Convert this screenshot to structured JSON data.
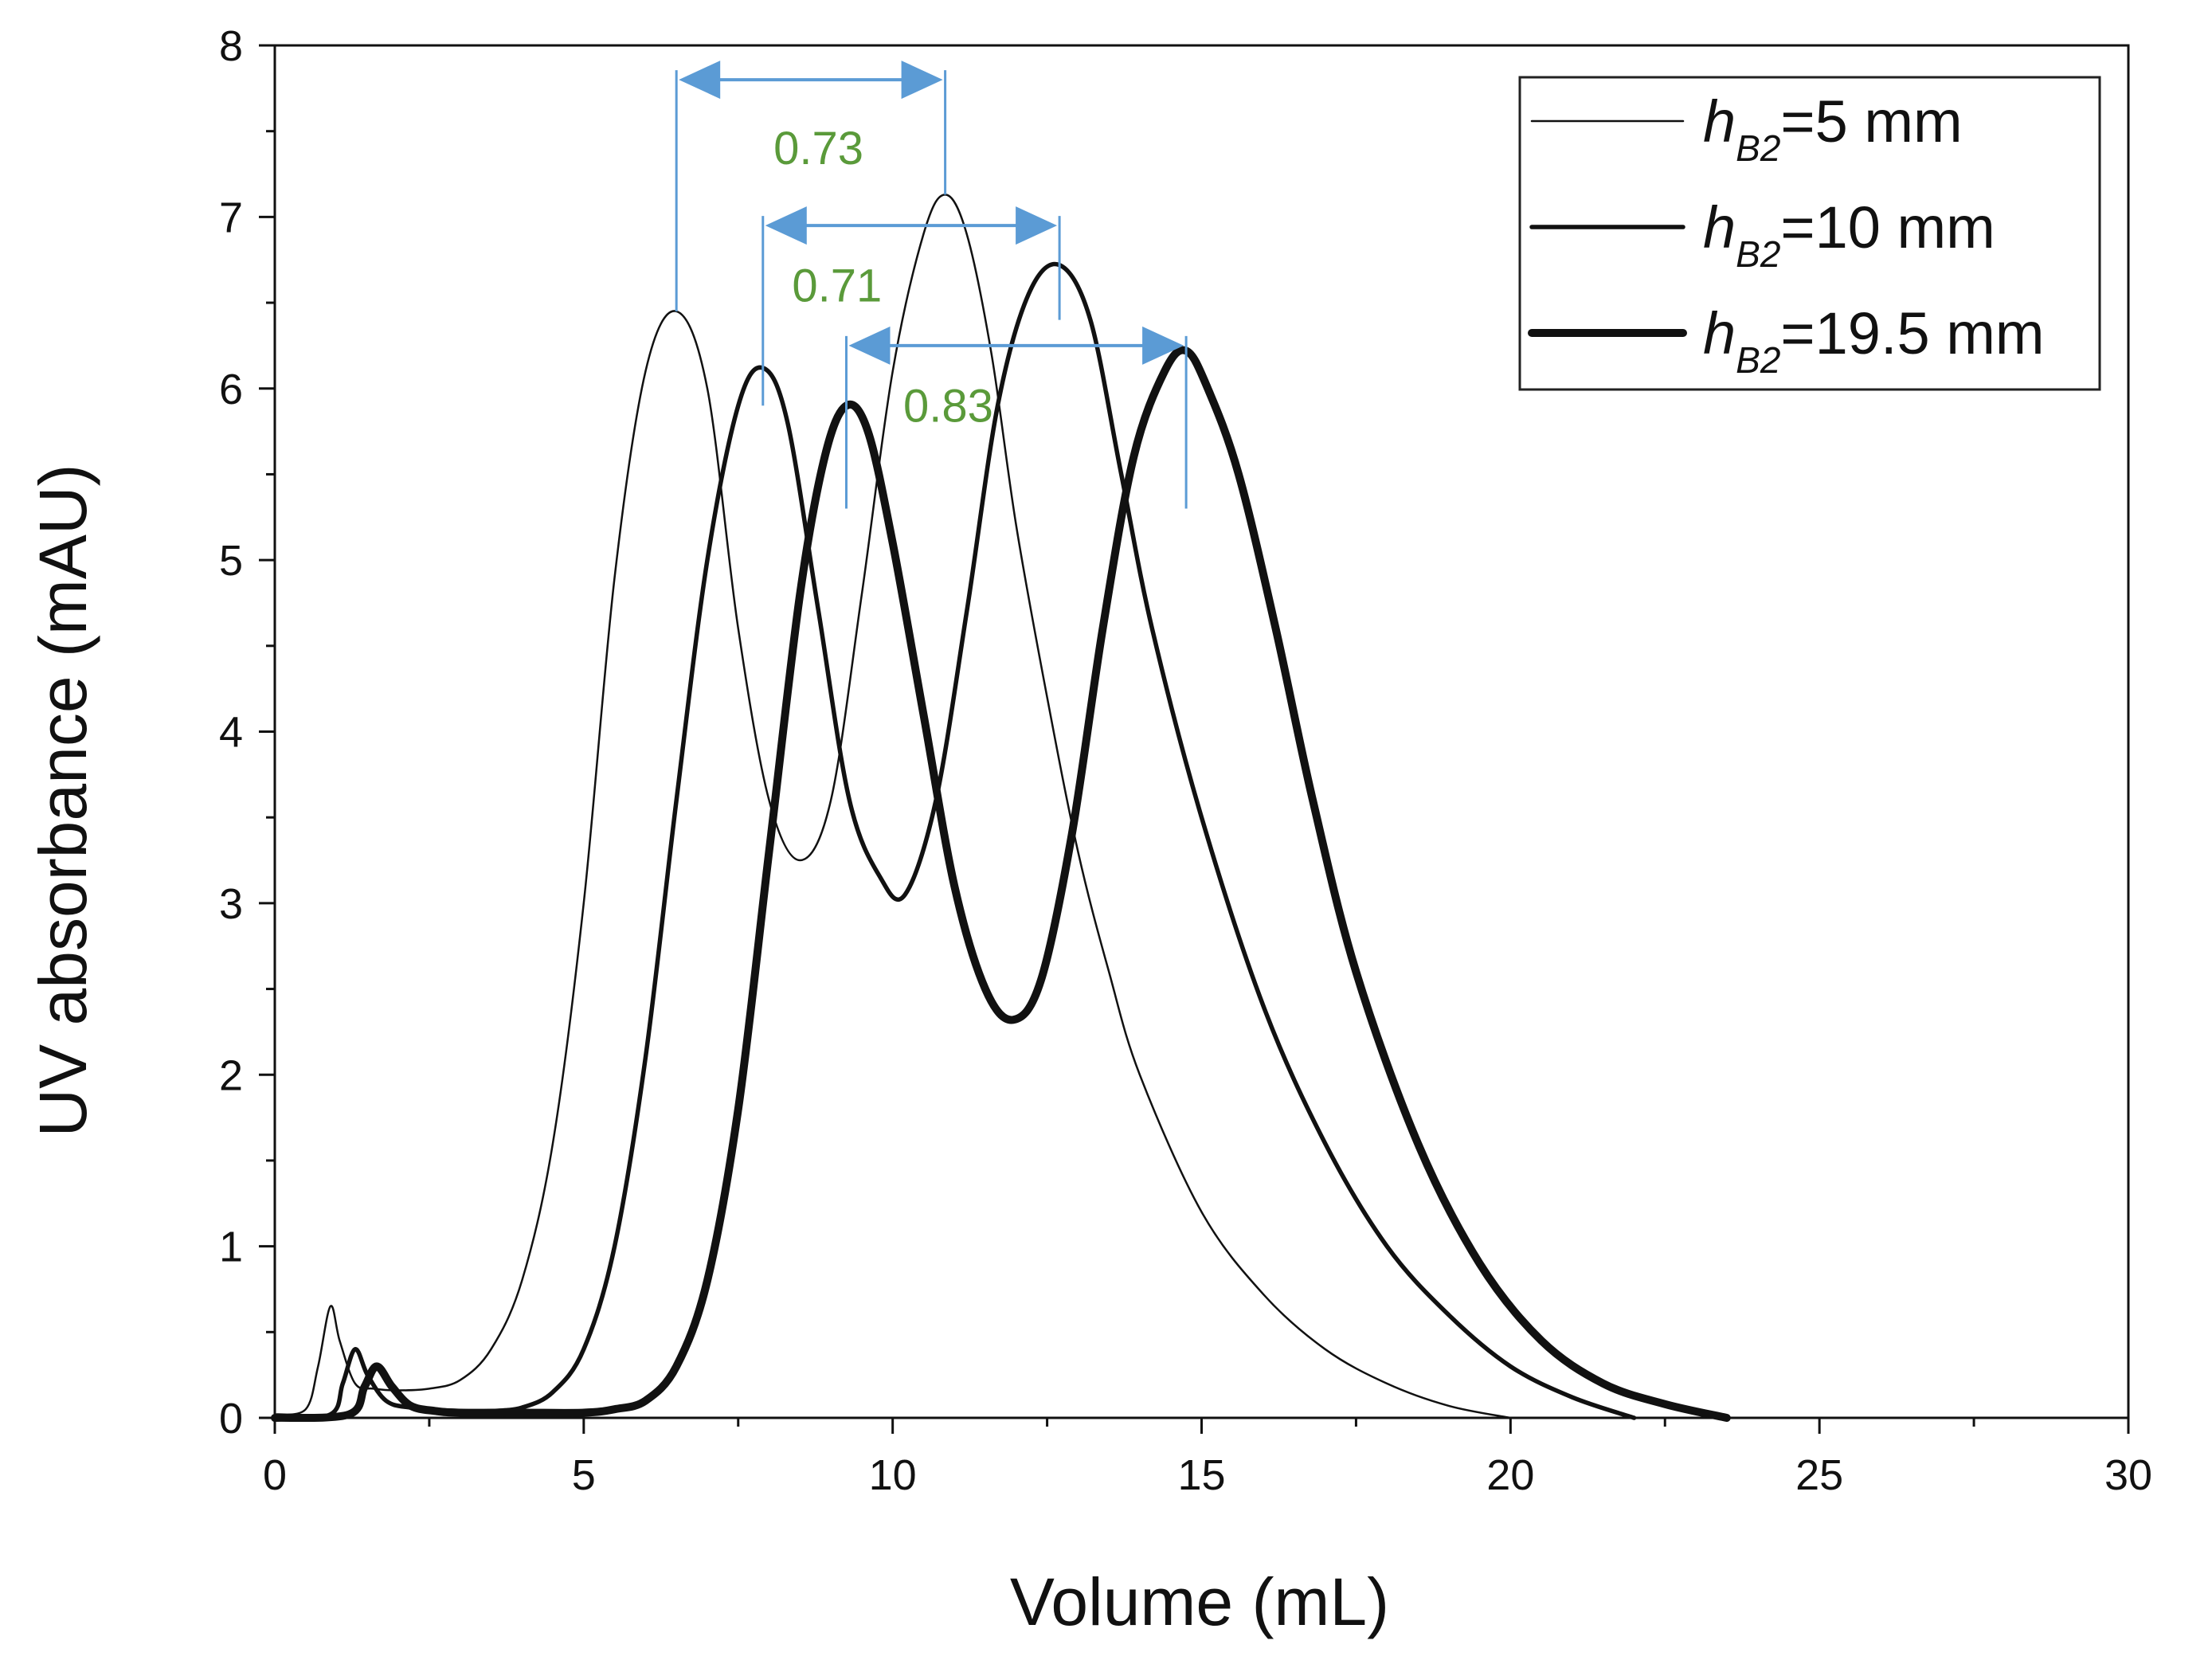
{
  "chart_data": {
    "type": "line",
    "title": "",
    "xlabel": "Volume (mL)",
    "ylabel": "UV absorbance (mAU)",
    "xlim": [
      0,
      30
    ],
    "ylim": [
      0,
      8
    ],
    "xticks": [
      "0",
      "5",
      "10",
      "15",
      "20",
      "25",
      "30"
    ],
    "yticks": [
      "0",
      "1",
      "2",
      "3",
      "4",
      "5",
      "6",
      "7",
      "8"
    ],
    "grid": false,
    "legend_position": "top-right",
    "colors": {
      "curves": "#111111",
      "annotation_line": "#5b9bd5",
      "annotation_text": "#5a9a3a"
    },
    "series": [
      {
        "name": "h_B2=5 mm",
        "legend": {
          "h": "h",
          "sub": "B2",
          "rest": "=5 mm"
        },
        "x": [
          0,
          0.5,
          0.7,
          0.9,
          1.05,
          1.3,
          1.6,
          2.0,
          2.5,
          3.0,
          3.5,
          4.0,
          4.5,
          5.0,
          5.5,
          6.0,
          6.5,
          7.0,
          7.5,
          8.0,
          8.5,
          9.0,
          9.5,
          10.0,
          10.5,
          10.85,
          11.2,
          11.6,
          12.0,
          12.5,
          13.0,
          13.5,
          14.0,
          15.0,
          16.0,
          17.0,
          18.0,
          19.0,
          20.0
        ],
        "y": [
          0.02,
          0.05,
          0.3,
          0.65,
          0.45,
          0.2,
          0.17,
          0.16,
          0.17,
          0.22,
          0.4,
          0.8,
          1.6,
          3.0,
          4.9,
          6.1,
          6.45,
          6.0,
          4.6,
          3.6,
          3.25,
          3.6,
          4.8,
          6.1,
          6.9,
          7.13,
          6.9,
          6.2,
          5.2,
          4.2,
          3.3,
          2.6,
          2.0,
          1.2,
          0.72,
          0.4,
          0.2,
          0.07,
          0.0
        ]
      },
      {
        "name": "h_B2=10 mm",
        "legend": {
          "h": "h",
          "sub": "B2",
          "rest": "=10 mm"
        },
        "x": [
          0,
          0.9,
          1.1,
          1.3,
          1.5,
          1.8,
          2.2,
          3.0,
          3.5,
          4.0,
          4.5,
          5.0,
          5.5,
          6.0,
          6.5,
          7.0,
          7.5,
          7.9,
          8.3,
          8.8,
          9.3,
          9.8,
          10.2,
          10.7,
          11.2,
          11.7,
          12.2,
          12.7,
          13.2,
          13.7,
          14.2,
          15.0,
          16.0,
          17.0,
          18.0,
          19.0,
          20.0,
          21.0,
          22.0
        ],
        "y": [
          0.0,
          0.02,
          0.2,
          0.4,
          0.25,
          0.1,
          0.06,
          0.04,
          0.04,
          0.06,
          0.15,
          0.4,
          1.0,
          2.1,
          3.6,
          5.0,
          5.9,
          6.12,
          5.8,
          4.7,
          3.6,
          3.15,
          3.05,
          3.6,
          4.7,
          5.9,
          6.55,
          6.72,
          6.4,
          5.5,
          4.6,
          3.5,
          2.4,
          1.6,
          1.0,
          0.6,
          0.3,
          0.12,
          0.0
        ]
      },
      {
        "name": "h_B2=19.5 mm",
        "legend": {
          "h": "h",
          "sub": "B2",
          "rest": "=19.5 mm"
        },
        "x": [
          0,
          1.2,
          1.45,
          1.65,
          1.9,
          2.2,
          2.6,
          3.0,
          4.0,
          5.0,
          5.5,
          6.0,
          6.5,
          7.0,
          7.5,
          8.0,
          8.5,
          8.9,
          9.25,
          9.6,
          10.0,
          10.5,
          11.0,
          11.5,
          11.95,
          12.4,
          12.9,
          13.4,
          13.9,
          14.4,
          14.75,
          15.1,
          15.6,
          16.2,
          16.8,
          17.5,
          18.5,
          19.5,
          20.5,
          21.5,
          22.5,
          23.5
        ],
        "y": [
          0.0,
          0.02,
          0.18,
          0.3,
          0.18,
          0.07,
          0.04,
          0.03,
          0.03,
          0.03,
          0.05,
          0.1,
          0.3,
          0.8,
          1.8,
          3.3,
          4.8,
          5.6,
          5.9,
          5.75,
          5.1,
          4.1,
          3.1,
          2.5,
          2.32,
          2.55,
          3.4,
          4.6,
          5.6,
          6.1,
          6.22,
          6.0,
          5.5,
          4.6,
          3.6,
          2.6,
          1.6,
          0.9,
          0.45,
          0.2,
          0.08,
          0.0
        ]
      }
    ],
    "annotations": [
      {
        "label": "0.73",
        "x1": 6.5,
        "x2": 10.85,
        "y_arrow": 7.8,
        "y1_bottom": 6.45,
        "y2_bottom": 7.13,
        "label_x": 8.8,
        "label_y": 7.4
      },
      {
        "label": "0.71",
        "x1": 7.9,
        "x2": 12.7,
        "y_arrow": 6.95,
        "y1_bottom": 5.9,
        "y2_bottom": 6.4,
        "label_x": 9.1,
        "label_y": 6.6
      },
      {
        "label": "0.83",
        "x1": 9.25,
        "x2": 14.75,
        "y_arrow": 6.25,
        "y1_bottom": 5.3,
        "y2_bottom": 5.3,
        "label_x": 10.9,
        "label_y": 5.9
      }
    ]
  }
}
